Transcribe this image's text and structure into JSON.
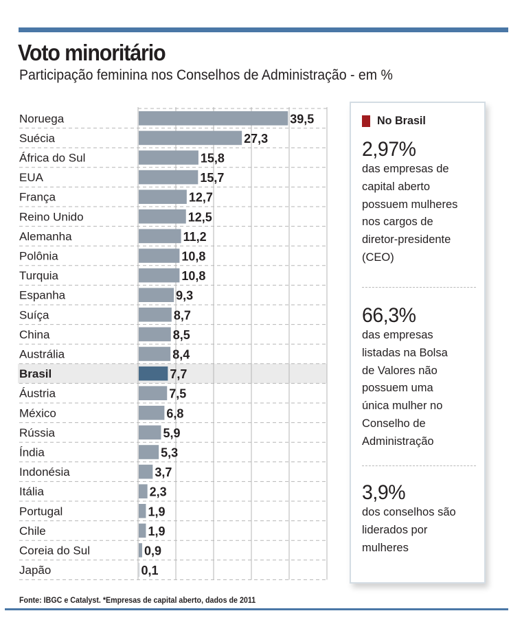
{
  "header": {
    "title": "Voto minoritário",
    "subtitle": "Participação feminina nos Conselhos de Administração - em %"
  },
  "colors": {
    "accent_rule": "#4a77a6",
    "bar": "#939fac",
    "bar_highlight": "#476a88",
    "highlight_row": "#ebebeb",
    "panel_marker": "#a11c1f",
    "grid": "#b5b5b5"
  },
  "chart_data": {
    "type": "bar",
    "orientation": "horizontal",
    "title": "Voto minoritário",
    "subtitle": "Participação feminina nos Conselhos de Administração - em %",
    "xlabel": "",
    "ylabel": "",
    "xlim": [
      0,
      50
    ],
    "grid": true,
    "highlight": "Brasil",
    "categories": [
      "Noruega",
      "Suécia",
      "África do Sul",
      "EUA",
      "França",
      "Reino Unido",
      "Alemanha",
      "Polônia",
      "Turquia",
      "Espanha",
      "Suíça",
      "China",
      "Austrália",
      "Brasil",
      "Áustria",
      "México",
      "Rússia",
      "Índia",
      "Indonésia",
      "Itália",
      "Portugal",
      "Chile",
      "Coreia do Sul",
      "Japão"
    ],
    "values": [
      39.5,
      27.3,
      15.8,
      15.7,
      12.7,
      12.5,
      11.2,
      10.8,
      10.8,
      9.3,
      8.7,
      8.5,
      8.4,
      7.7,
      7.5,
      6.8,
      5.9,
      5.3,
      3.7,
      2.3,
      1.9,
      1.9,
      0.9,
      0.1
    ],
    "value_labels": [
      "39,5",
      "27,3",
      "15,8",
      "15,7",
      "12,7",
      "12,5",
      "11,2",
      "10,8",
      "10,8",
      "9,3",
      "8,7",
      "8,5",
      "8,4",
      "7,7",
      "7,5",
      "6,8",
      "5,9",
      "5,3",
      "3,7",
      "2,3",
      "1,9",
      "1,9",
      "0,9",
      "0,1"
    ]
  },
  "panel": {
    "title": "No Brasil",
    "stats": [
      {
        "value": "2,97%",
        "text": "das empresas de\ncapital aberto\npossuem mulheres\nnos cargos de\ndiretor-presidente\n(CEO)"
      },
      {
        "value": "66,3%",
        "text": "das empresas\nlistadas na Bolsa\nde Valores não\npossuem uma\núnica mulher no\nConselho de\nAdministração"
      },
      {
        "value": "3,9%",
        "text": "dos conselhos são\nliderados por\nmulheres"
      }
    ]
  },
  "footer": {
    "source": "Fonte: IBGC e Catalyst. *Empresas de capital aberto, dados de 2011"
  }
}
